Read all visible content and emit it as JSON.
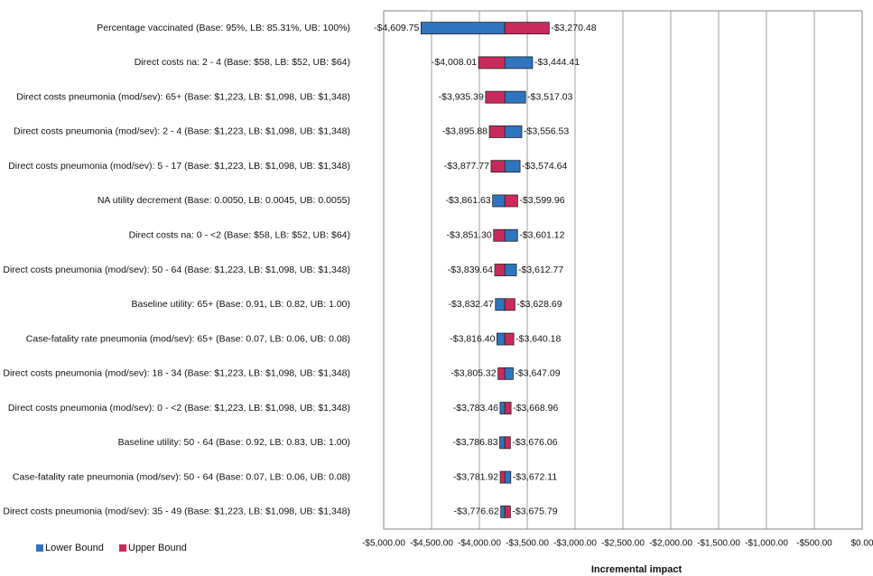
{
  "chart_data": {
    "type": "tornado",
    "x_label": "Incremental impact",
    "categories": [
      "Percentage vaccinated (Base: 95%, LB: 85.31%, UB: 100%)",
      "Direct costs na: 2 - 4 (Base: $58, LB: $52, UB: $64)",
      "Direct costs pneumonia (mod/sev): 65+ (Base: $1,223, LB: $1,098, UB: $1,348)",
      "Direct costs pneumonia (mod/sev): 2 - 4 (Base: $1,223, LB: $1,098, UB: $1,348)",
      "Direct costs pneumonia (mod/sev): 5 - 17 (Base: $1,223, LB: $1,098, UB: $1,348)",
      "NA utility decrement (Base: 0.0050, LB: 0.0045, UB: 0.0055)",
      "Direct costs na: 0 - <2 (Base: $58, LB: $52, UB: $64)",
      "Direct costs pneumonia (mod/sev): 50 - 64 (Base: $1,223, LB: $1,098, UB: $1,348)",
      "Baseline utility: 65+ (Base: 0.91, LB: 0.82, UB: 1.00)",
      "Case-fatality rate pneumonia (mod/sev): 65+ (Base: 0.07, LB: 0.06, UB: 0.08)",
      "Direct costs pneumonia (mod/sev): 18 - 34 (Base: $1,223, LB: $1,098, UB: $1,348)",
      "Direct costs pneumonia (mod/sev): 0 - <2 (Base: $1,223, LB: $1,098, UB: $1,348)",
      "Baseline utility: 50 - 64 (Base: 0.92, LB: 0.83, UB: 1.00)",
      "Case-fatality rate pneumonia (mod/sev): 50 - 64 (Base: 0.07, LB: 0.06, UB: 0.08)",
      "Direct costs pneumonia (mod/sev): 35 - 49 (Base: $1,223, LB: $1,098, UB: $1,348)"
    ],
    "base_value": -3735,
    "series": [
      {
        "name": "Lower Bound",
        "color": "#2f74bf",
        "values": [
          -4609.75,
          -3444.41,
          -3517.03,
          -3556.53,
          -3574.64,
          -3861.63,
          -3601.12,
          -3612.77,
          -3832.47,
          -3816.4,
          -3647.09,
          -3783.46,
          -3786.83,
          -3672.11,
          -3776.62
        ],
        "value_labels": [
          "-$4,609.75",
          "-$3,444.41",
          "-$3,517.03",
          "-$3,556.53",
          "-$3,574.64",
          "-$3,861.63",
          "-$3,601.12",
          "-$3,612.77",
          "-$3,832.47",
          "-$3,816.40",
          "-$3,647.09",
          "-$3,783.46",
          "-$3,786.83",
          "-$3,672.11",
          "-$3,776.62"
        ]
      },
      {
        "name": "Upper Bound",
        "color": "#c92a5c",
        "values": [
          -3270.48,
          -4008.01,
          -3935.39,
          -3895.88,
          -3877.77,
          -3599.96,
          -3851.3,
          -3839.64,
          -3628.69,
          -3640.18,
          -3805.32,
          -3668.96,
          -3676.06,
          -3781.92,
          -3675.79
        ],
        "value_labels": [
          "-$3,270.48",
          "-$4,008.01",
          "-$3,935.39",
          "-$3,895.88",
          "-$3,877.77",
          "-$3,599.96",
          "-$3,851.30",
          "-$3,839.64",
          "-$3,628.69",
          "-$3,640.18",
          "-$3,805.32",
          "-$3,668.96",
          "-$3,676.06",
          "-$3,781.92",
          "-$3,675.79"
        ]
      }
    ],
    "xlim": [
      -5000,
      0
    ],
    "xticks": [
      {
        "value": -5000,
        "label": "-$5,000.00"
      },
      {
        "value": -4500,
        "label": "-$4,500.00"
      },
      {
        "value": -4000,
        "label": "-$4,000.00"
      },
      {
        "value": -3500,
        "label": "-$3,500.00"
      },
      {
        "value": -3000,
        "label": "-$3,000.00"
      },
      {
        "value": -2500,
        "label": "-$2,500.00"
      },
      {
        "value": -2000,
        "label": "-$2,000.00"
      },
      {
        "value": -1500,
        "label": "-$1,500.00"
      },
      {
        "value": -1000,
        "label": "-$1,000.00"
      },
      {
        "value": -500,
        "label": "-$500.00"
      },
      {
        "value": 0,
        "label": "$0.00"
      }
    ],
    "grid": true,
    "legend": "bottom-left"
  }
}
